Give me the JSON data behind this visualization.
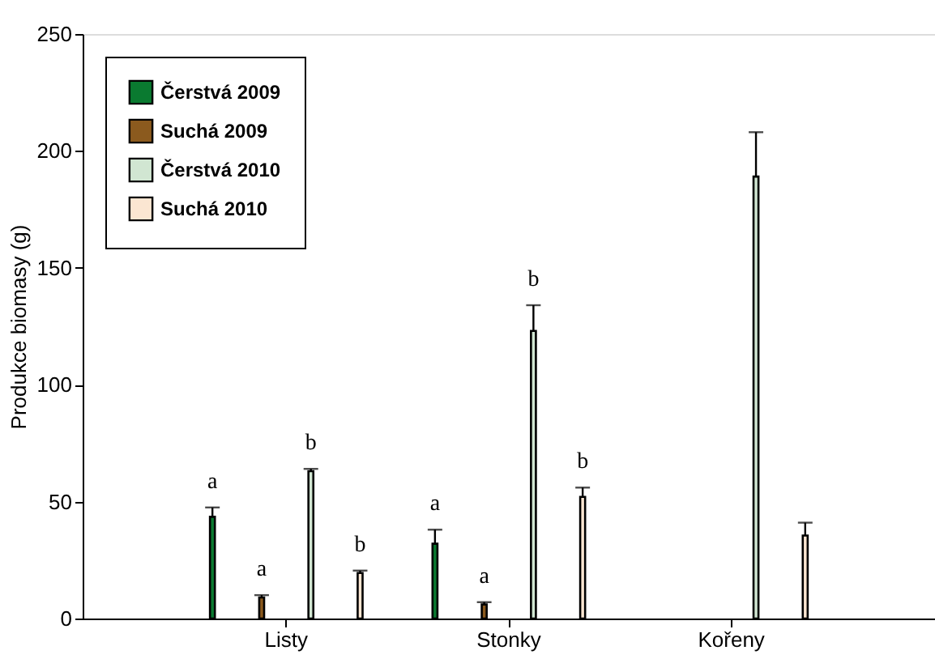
{
  "chart_data": {
    "type": "bar",
    "ylabel": "Produkce biomasy (g)",
    "categories": [
      "Listy",
      "Stonky",
      "Kořeny"
    ],
    "series": [
      {
        "name": "Čerstvá 2009",
        "color": "#0a7a30",
        "values": [
          43.5,
          32,
          null
        ],
        "errors": [
          [
            43.5,
            47.5
          ],
          [
            32,
            38
          ],
          null
        ],
        "value_labels": [
          "a",
          "a",
          null
        ]
      },
      {
        "name": "Suchá 2009",
        "color": "#8b5a1e",
        "values": [
          9,
          6,
          null
        ],
        "errors": [
          [
            9,
            10
          ],
          [
            6,
            7
          ],
          null
        ],
        "value_labels": [
          "a",
          "a",
          null
        ]
      },
      {
        "name": "Čerstvá 2010",
        "color": "#d1e6d2",
        "values": [
          63,
          123,
          189
        ],
        "errors": [
          [
            63,
            64
          ],
          [
            123,
            134
          ],
          [
            189,
            208
          ]
        ],
        "value_labels": [
          "b",
          "b",
          null
        ]
      },
      {
        "name": "Suchá 2010",
        "color": "#fbe6d2",
        "values": [
          19.5,
          52,
          35.5
        ],
        "errors": [
          [
            19.5,
            20.5
          ],
          [
            52,
            56
          ],
          [
            35.5,
            41
          ]
        ],
        "value_labels": [
          "b",
          "b",
          null
        ]
      }
    ],
    "ylim": [
      0,
      250
    ],
    "yticks": [
      0,
      50,
      100,
      150,
      200,
      250
    ],
    "grid": false,
    "legend": "top left"
  }
}
